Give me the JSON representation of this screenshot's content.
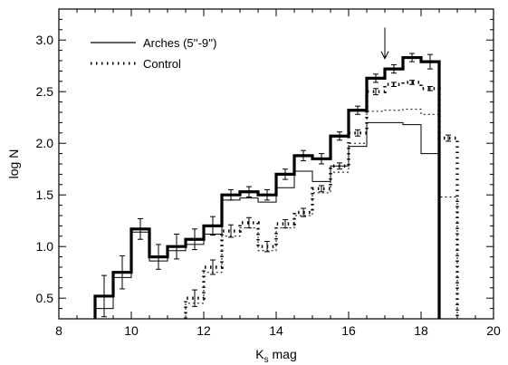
{
  "chart_data": {
    "type": "line",
    "title": "",
    "xlabel": "K",
    "xlabel_sub": "s",
    "xlabel_suffix": " mag",
    "ylabel": "log N",
    "xlim": [
      8,
      20
    ],
    "ylim": [
      0.3,
      3.3
    ],
    "xticks": [
      8,
      10,
      12,
      14,
      16,
      18,
      20
    ],
    "yticks": [
      0.5,
      1.0,
      1.5,
      2.0,
      2.5,
      3.0
    ],
    "grid": false,
    "legend_position": "top-left",
    "legend": [
      {
        "label": "Arches (5''-9'')",
        "style": "solid"
      },
      {
        "label": "Control",
        "style": "dotted"
      }
    ],
    "arrow_annotation": {
      "x": 17.0,
      "y_from": 3.12,
      "y_to": 2.82
    },
    "series": [
      {
        "name": "Arches (5''-9'')",
        "style": "thick-solid",
        "edges": [
          9.0,
          9.5,
          10.0,
          10.5,
          11.0,
          11.5,
          12.0,
          12.5,
          13.0,
          13.5,
          14.0,
          14.5,
          15.0,
          15.5,
          16.0,
          16.5,
          17.0,
          17.5,
          18.0,
          18.5
        ],
        "values": [
          0.52,
          0.75,
          1.17,
          0.9,
          1.0,
          1.07,
          1.2,
          1.5,
          1.53,
          1.5,
          1.7,
          1.88,
          1.85,
          2.07,
          2.32,
          2.63,
          2.72,
          2.83,
          2.79
        ],
        "errors": [
          0.2,
          0.16,
          0.1,
          0.12,
          0.12,
          0.1,
          0.09,
          0.05,
          0.05,
          0.05,
          0.05,
          0.05,
          0.05,
          0.04,
          0.04,
          0.04,
          0.04,
          0.04,
          0.07
        ],
        "drop_to": 0.3
      },
      {
        "name": "Arches thin",
        "style": "thin-solid",
        "edges": [
          9.0,
          9.5,
          10.0,
          10.5,
          11.0,
          11.5,
          12.0,
          12.5,
          13.0,
          13.5,
          14.0,
          14.5,
          15.0,
          15.5,
          16.0,
          16.5,
          17.0,
          17.5,
          18.0,
          18.5
        ],
        "values": [
          0.4,
          0.7,
          1.14,
          0.86,
          0.96,
          1.02,
          1.12,
          1.45,
          1.47,
          1.43,
          1.57,
          1.73,
          1.63,
          1.78,
          1.97,
          2.2,
          2.2,
          2.18,
          1.9
        ],
        "drop_to": 0.3
      },
      {
        "name": "Control",
        "style": "thick-dotted",
        "edges": [
          11.5,
          12.0,
          12.5,
          13.0,
          13.5,
          14.0,
          14.5,
          15.0,
          15.5,
          16.0,
          16.5,
          17.0,
          17.5,
          18.0,
          18.5,
          19.0
        ],
        "values": [
          0.5,
          0.8,
          1.15,
          1.23,
          1.0,
          1.22,
          1.33,
          1.56,
          1.78,
          2.1,
          2.5,
          2.57,
          2.59,
          2.53,
          2.05
        ],
        "errors": [
          0.08,
          0.07,
          0.06,
          0.05,
          0.05,
          0.04,
          0.04,
          0.03,
          0.03,
          0.03,
          0.03,
          0.02,
          0.02,
          0.02,
          0.03
        ],
        "drop_to": 0.3
      },
      {
        "name": "Control thin",
        "style": "thin-dotted",
        "edges": [
          11.5,
          12.0,
          12.5,
          13.0,
          13.5,
          14.0,
          14.5,
          15.0,
          15.5,
          16.0,
          16.5,
          17.0,
          17.5,
          18.0,
          18.5,
          19.0
        ],
        "values": [
          0.45,
          0.75,
          1.1,
          1.18,
          0.96,
          1.18,
          1.3,
          1.52,
          1.72,
          2.0,
          2.31,
          2.32,
          2.33,
          2.28,
          1.48
        ],
        "drop_to": 0.3
      }
    ]
  }
}
